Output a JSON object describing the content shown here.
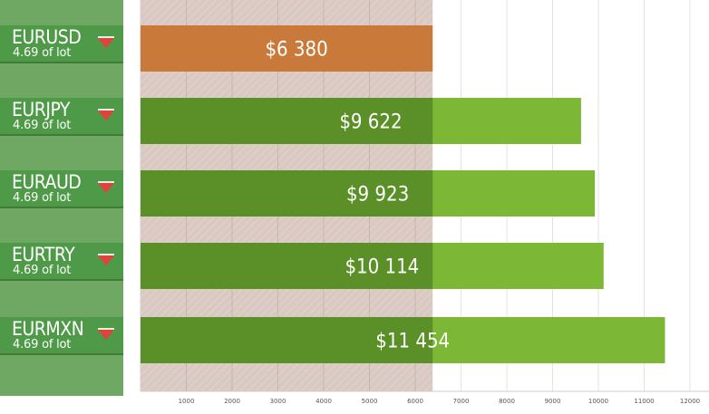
{
  "chart_data": {
    "type": "bar",
    "orientation": "horizontal",
    "categories": [
      "EURUSD",
      "EURJPY",
      "EURAUD",
      "EURTRY",
      "EURMXN"
    ],
    "lot_labels": [
      "4.69 of lot",
      "4.69 of lot",
      "4.69 of lot",
      "4.69 of lot",
      "4.69 of lot"
    ],
    "values": [
      6380,
      9622,
      9923,
      10114,
      11454
    ],
    "value_labels": [
      "$6 380",
      "$9 622",
      "$9 923",
      "$10 114",
      "$11 454"
    ],
    "direction_icons": [
      "down-triangle",
      "down-triangle",
      "down-triangle",
      "down-triangle",
      "down-triangle"
    ],
    "highlight_threshold": 6380,
    "xlim": [
      0,
      12000
    ],
    "xticks": [
      1000,
      2000,
      3000,
      4000,
      5000,
      6000,
      7000,
      8000,
      9000,
      10000,
      11000,
      12000
    ],
    "tick_labels": [
      "1000",
      "2000",
      "3000",
      "4000",
      "5000",
      "6000",
      "7000",
      "8000",
      "9000",
      "10000",
      "11000",
      "12000"
    ],
    "grid": true,
    "colors": {
      "first_bar": "#c97a3a",
      "bar": "#7cb836",
      "overlap": "#5b8f27",
      "band": "#dac9c3",
      "label_panel": "#4f9a48",
      "panel_bg": "#6fa863",
      "down_icon": "#e0433c"
    }
  }
}
